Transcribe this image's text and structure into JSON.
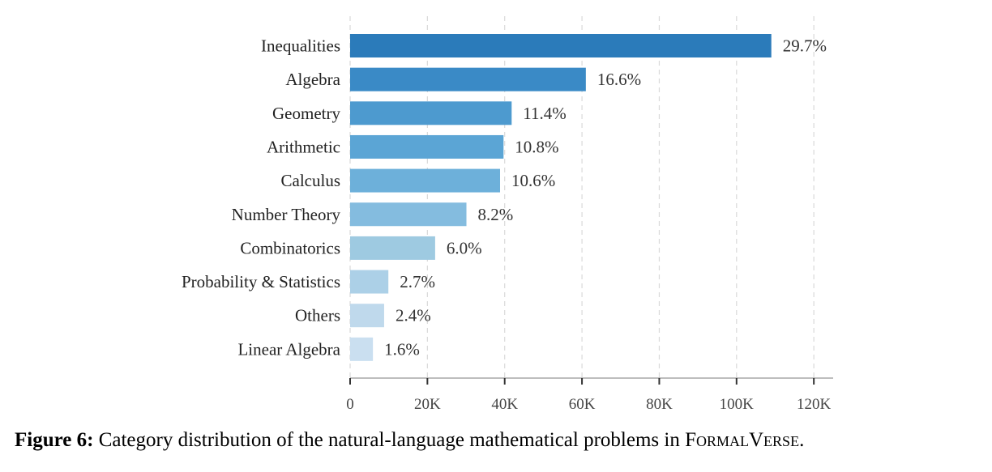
{
  "chart_data": {
    "type": "bar",
    "orientation": "horizontal",
    "categories": [
      "Inequalities",
      "Algebra",
      "Geometry",
      "Arithmetic",
      "Calculus",
      "Number Theory",
      "Combinatorics",
      "Probability & Statistics",
      "Others",
      "Linear Algebra"
    ],
    "values": [
      109000,
      61000,
      41800,
      39700,
      38800,
      30100,
      22000,
      9900,
      8800,
      5900
    ],
    "value_labels": [
      "29.7%",
      "16.6%",
      "11.4%",
      "10.8%",
      "10.6%",
      "8.2%",
      "6.0%",
      "2.7%",
      "2.4%",
      "1.6%"
    ],
    "colors": [
      "#2b7bba",
      "#3a8ac6",
      "#4d9acf",
      "#5ba5d5",
      "#6db0da",
      "#84bcdf",
      "#9ecae1",
      "#acd0e7",
      "#bfd9ec",
      "#cadff0"
    ],
    "xlim": [
      0,
      125000
    ],
    "xticks": [
      0,
      20000,
      40000,
      60000,
      80000,
      100000,
      120000
    ],
    "xtick_labels": [
      "0",
      "20K",
      "40K",
      "60K",
      "80K",
      "100K",
      "120K"
    ],
    "grid": "vertical dashed",
    "xlabel": "",
    "ylabel": ""
  },
  "caption": {
    "figure_number": "Figure 6:",
    "text": " Category distribution of the natural-language mathematical problems in ",
    "dataset_name": "FormalVerse",
    "end": "."
  }
}
